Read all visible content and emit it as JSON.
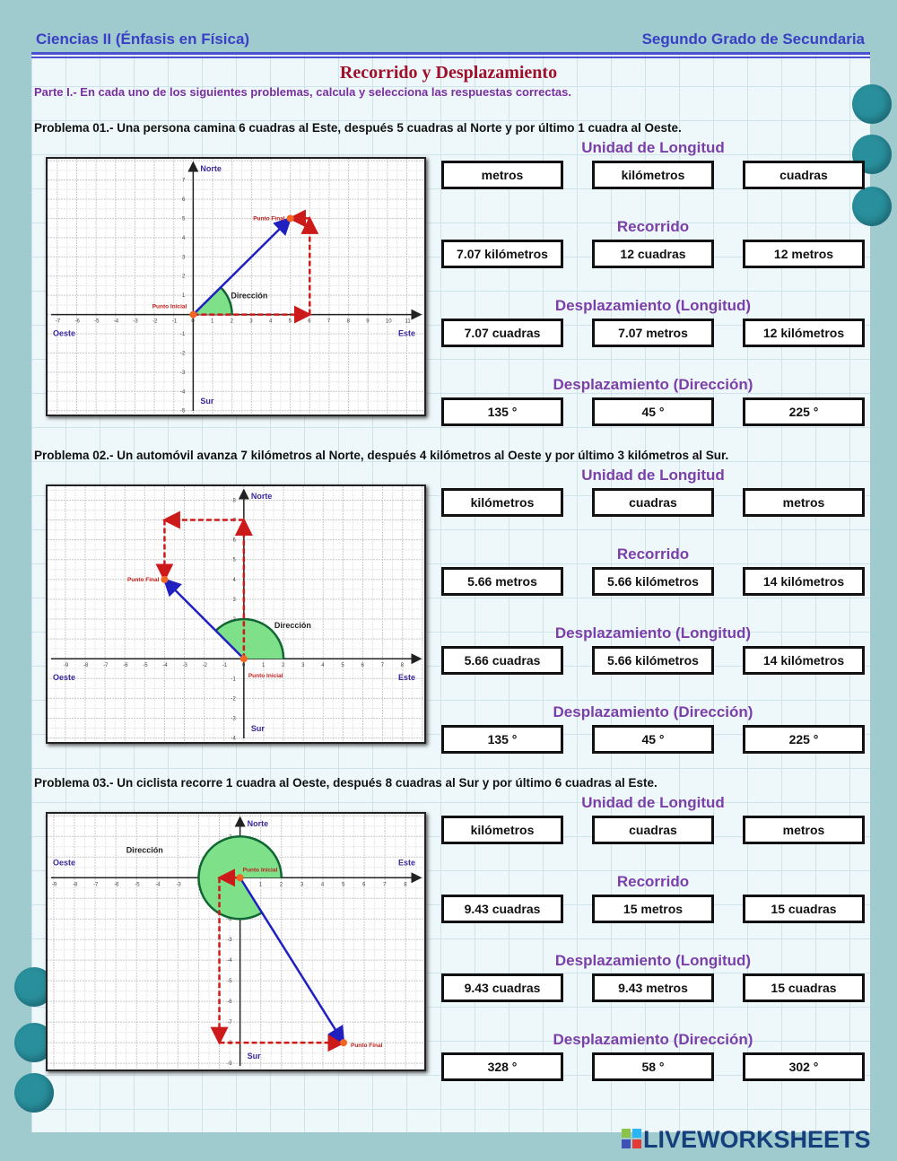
{
  "header": {
    "left": "Ciencias II (Énfasis en Física)",
    "right": "Segundo Grado de Secundaria"
  },
  "title": "Recorrido y Desplazamiento",
  "subtitle": "Parte I.- En cada uno de los siguientes problemas, calcula y selecciona las respuestas correctas.",
  "colors": {
    "accent_purple": "#7b3fa8",
    "title_red": "#a0102a",
    "header_blue": "#3a3fc4",
    "vector_blue": "#2020c0",
    "path_red": "#cc1a1a",
    "angle_green": "#7fe08a"
  },
  "problems": [
    {
      "text": "Problema 01.- Una persona camina 6 cuadras al Este, después 5 cuadras al Norte y por último 1 cuadra al Oeste.",
      "sections": [
        {
          "title": "Unidad de Longitud",
          "options": [
            "metros",
            "kilómetros",
            "cuadras"
          ]
        },
        {
          "title": "Recorrido",
          "options": [
            "7.07 kilómetros",
            "12 cuadras",
            "12 metros"
          ]
        },
        {
          "title": "Desplazamiento (Longitud)",
          "options": [
            "7.07 cuadras",
            "7.07 metros",
            "12 kilómetros"
          ]
        },
        {
          "title": "Desplazamiento (Dirección)",
          "options": [
            "135 °",
            "45 °",
            "225 °"
          ]
        }
      ],
      "graph": {
        "labels": {
          "north": "Norte",
          "south": "Sur",
          "east": "Este",
          "west": "Oeste",
          "start": "Punto Inicial",
          "end": "Punto Final",
          "direction": "Dirección"
        },
        "xlim": [
          -7.5,
          11.9
        ],
        "ylim": [
          -5.2,
          8.1
        ],
        "path": [
          [
            0,
            0
          ],
          [
            6,
            0
          ],
          [
            6,
            5
          ],
          [
            5,
            5
          ]
        ],
        "displacement": [
          5,
          5
        ],
        "angle_deg": 45
      }
    },
    {
      "text": "Problema 02.- Un automóvil avanza 7 kilómetros al  Norte, después 4 kilómetros al Oeste y por último 3 kilómetros al Sur.",
      "sections": [
        {
          "title": "Unidad de Longitud",
          "options": [
            "kilómetros",
            "cuadras",
            "metros"
          ]
        },
        {
          "title": "Recorrido",
          "options": [
            "5.66 metros",
            "5.66 kilómetros",
            "14 kilómetros"
          ]
        },
        {
          "title": "Desplazamiento (Longitud)",
          "options": [
            "5.66 cuadras",
            "5.66 kilómetros",
            "14 kilómetros"
          ]
        },
        {
          "title": "Desplazamiento (Dirección)",
          "options": [
            "135 °",
            "45 °",
            "225 °"
          ]
        }
      ],
      "graph": {
        "labels": {
          "north": "Norte",
          "south": "Sur",
          "east": "Este",
          "west": "Oeste",
          "start": "Punto Inicial",
          "end": "Punto Final",
          "direction": "Dirección"
        },
        "xlim": [
          -9.9,
          9.1
        ],
        "ylim": [
          -4.2,
          8.7
        ],
        "path": [
          [
            0,
            0
          ],
          [
            0,
            7
          ],
          [
            -4,
            7
          ],
          [
            -4,
            4
          ]
        ],
        "displacement": [
          -4,
          4
        ],
        "angle_deg": 135
      }
    },
    {
      "text": "Problema 03.- Un ciclista recorre 1 cuadra al Oeste, después 8 cuadras al Sur y por último 6 cuadras al Este.",
      "sections": [
        {
          "title": "Unidad de Longitud",
          "options": [
            "kilómetros",
            "cuadras",
            "metros"
          ]
        },
        {
          "title": "Recorrido",
          "options": [
            "9.43 cuadras",
            "15 metros",
            "15 cuadras"
          ]
        },
        {
          "title": "Desplazamiento (Longitud)",
          "options": [
            "9.43 cuadras",
            "9.43 metros",
            "15 cuadras"
          ]
        },
        {
          "title": "Desplazamiento (Dirección)",
          "options": [
            "328 °",
            "58 °",
            "302 °"
          ]
        }
      ],
      "graph": {
        "labels": {
          "north": "Norte",
          "south": "Sur",
          "east": "Este",
          "west": "Oeste",
          "start": "Punto Inicial",
          "end": "Punto Final",
          "direction": "Dirección"
        },
        "xlim": [
          -9.3,
          8.9
        ],
        "ylim": [
          -9.3,
          3.1
        ],
        "path": [
          [
            0,
            0
          ],
          [
            -1,
            0
          ],
          [
            -1,
            -8
          ],
          [
            5,
            -8
          ]
        ],
        "displacement": [
          5,
          -8
        ],
        "angle_deg": 302
      }
    }
  ],
  "logo": "LIVEWORKSHEETS"
}
